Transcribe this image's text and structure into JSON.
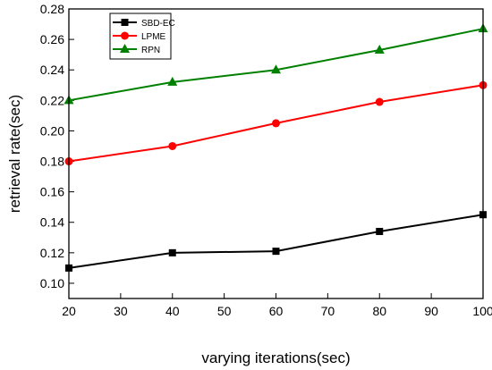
{
  "chart_data": {
    "type": "line",
    "title": "",
    "xlabel": "varying iterations(sec)",
    "ylabel": "retrieval rate(sec)",
    "x": [
      20,
      40,
      60,
      80,
      100
    ],
    "xlim": [
      20,
      100
    ],
    "ylim": [
      0.09,
      0.28
    ],
    "xticks": [
      20,
      30,
      40,
      50,
      60,
      70,
      80,
      90,
      100
    ],
    "yticks": [
      0.1,
      0.12,
      0.14,
      0.16,
      0.18,
      0.2,
      0.22,
      0.24,
      0.26,
      0.28
    ],
    "xtick_labels": [
      "20",
      "30",
      "40",
      "50",
      "60",
      "70",
      "80",
      "90",
      "100"
    ],
    "ytick_labels": [
      "0.10",
      "0.12",
      "0.14",
      "0.16",
      "0.18",
      "0.20",
      "0.22",
      "0.24",
      "0.26",
      "0.28"
    ],
    "grid": false,
    "legend_position": "top-left",
    "series": [
      {
        "name": "SBD-EC",
        "values": [
          0.11,
          0.12,
          0.121,
          0.134,
          0.145
        ],
        "color": "#000000",
        "marker": "square"
      },
      {
        "name": "LPME",
        "values": [
          0.18,
          0.19,
          0.205,
          0.219,
          0.23
        ],
        "color": "#ff0000",
        "marker": "circle"
      },
      {
        "name": "RPN",
        "values": [
          0.22,
          0.232,
          0.24,
          0.253,
          0.267
        ],
        "color": "#008000",
        "marker": "triangle"
      }
    ]
  }
}
